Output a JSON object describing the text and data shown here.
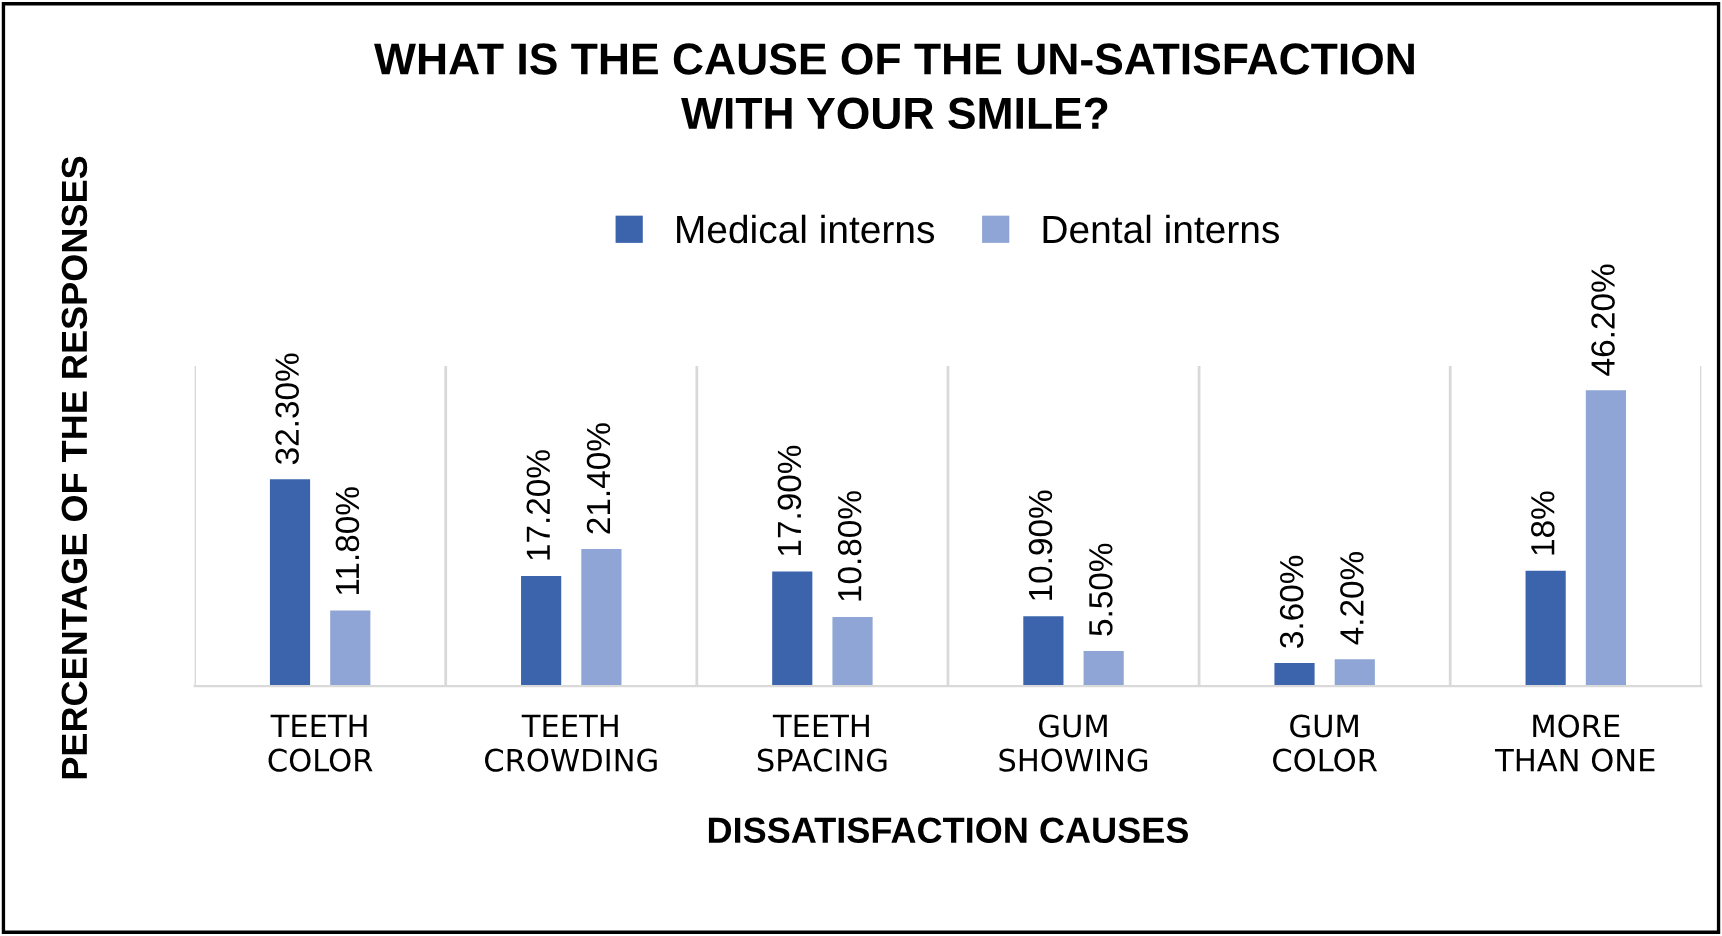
{
  "chart_data": {
    "type": "bar",
    "title": "WHAT IS THE CAUSE OF THE UN-SATISFACTION\nWITH YOUR SMILE?",
    "xlabel": "DISSATISFACTION CAUSES",
    "ylabel": "PERCENTAGE OF THE RESPONSES",
    "categories": [
      "TEETH\nCOLOR",
      "TEETH\nCROWDING",
      "TEETH\nSPACING",
      "GUM\nSHOWING",
      "GUM\nCOLOR",
      "MORE\nTHAN ONE"
    ],
    "series": [
      {
        "name": "Medical interns",
        "color": "#3b64ad",
        "values": [
          32.3,
          17.2,
          17.9,
          10.9,
          3.6,
          18
        ],
        "value_labels": [
          "32.30%",
          "17.20%",
          "17.90%",
          "10.90%",
          "3.60%",
          "18%"
        ]
      },
      {
        "name": "Dental interns",
        "color": "#8fa5d5",
        "values": [
          11.8,
          21.4,
          10.8,
          5.5,
          4.2,
          46.2
        ],
        "value_labels": [
          "11.80%",
          "21.40%",
          "10.80%",
          "5.50%",
          "4.20%",
          "46.20%"
        ]
      }
    ],
    "ylim": [
      0,
      50
    ],
    "tick_labels": "x",
    "grid": "x",
    "legend": "top"
  }
}
